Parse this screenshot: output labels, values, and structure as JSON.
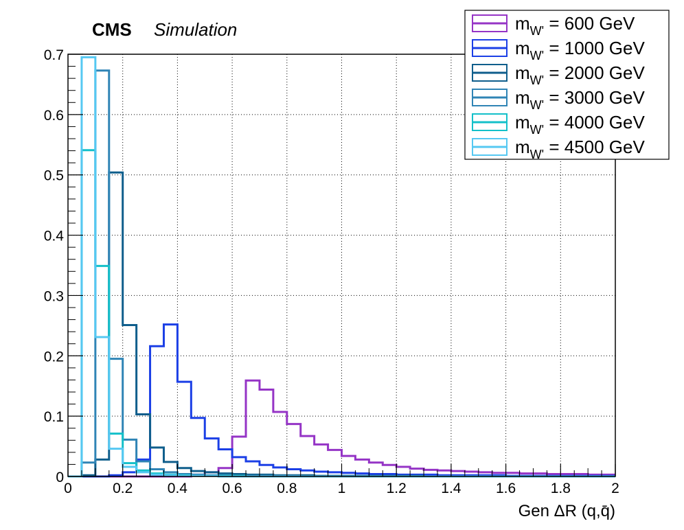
{
  "chart_data": {
    "type": "histogram",
    "experiment_label": "CMS",
    "status_label": "Simulation",
    "xlabel": "Gen ΔR (q,q̄)",
    "ylabel": "",
    "xlim": [
      0,
      2
    ],
    "ylim": [
      0,
      0.7
    ],
    "grid": true,
    "legend_position": "top-right",
    "bin_width": 0.05,
    "x_ticks": [
      "0",
      "0.2",
      "0.4",
      "0.6",
      "0.8",
      "1",
      "1.2",
      "1.4",
      "1.6",
      "1.8",
      "2"
    ],
    "y_ticks": [
      "0",
      "0.1",
      "0.2",
      "0.3",
      "0.4",
      "0.5",
      "0.6",
      "0.7"
    ],
    "series": [
      {
        "name": "mW' = 600 GeV",
        "legend_prefix": "m",
        "legend_sub": "W'",
        "legend_value": " = 600 GeV",
        "color": "#9534c6",
        "values": [
          0,
          0,
          0,
          0,
          0,
          0,
          0,
          0,
          0,
          0.003,
          0.007,
          0.014,
          0.066,
          0.159,
          0.144,
          0.107,
          0.087,
          0.067,
          0.053,
          0.044,
          0.034,
          0.028,
          0.023,
          0.019,
          0.016,
          0.013,
          0.011,
          0.01,
          0.009,
          0.008,
          0.007,
          0.006,
          0.006,
          0.005,
          0.005,
          0.004,
          0.004,
          0.004,
          0.003,
          0.003
        ]
      },
      {
        "name": "mW' = 1000 GeV",
        "legend_prefix": "m",
        "legend_sub": "W'",
        "legend_value": " = 1000 GeV",
        "color": "#1b3fe6",
        "values": [
          0,
          0,
          0,
          0.002,
          0.007,
          0.028,
          0.216,
          0.252,
          0.157,
          0.097,
          0.063,
          0.045,
          0.032,
          0.025,
          0.019,
          0.015,
          0.012,
          0.01,
          0.008,
          0.007,
          0.006,
          0.005,
          0.004,
          0.004,
          0.003,
          0.003,
          0.003,
          0.002,
          0.002,
          0.002,
          0.002,
          0.002,
          0.001,
          0.001,
          0.001,
          0.001,
          0.001,
          0.001,
          0.001,
          0.001
        ]
      },
      {
        "name": "mW' = 2000 GeV",
        "legend_prefix": "m",
        "legend_sub": "W'",
        "legend_value": " = 2000 GeV",
        "color": "#0f5e8c",
        "values": [
          0,
          0.002,
          0.028,
          0.504,
          0.251,
          0.103,
          0.048,
          0.024,
          0.014,
          0.009,
          0.007,
          0.005,
          0.004,
          0.003,
          0.003,
          0.002,
          0.002,
          0.002,
          0.001,
          0.001,
          0.001,
          0.001,
          0.001,
          0.001,
          0.001,
          0.001,
          0,
          0,
          0,
          0,
          0,
          0,
          0,
          0,
          0,
          0,
          0,
          0,
          0,
          0
        ]
      },
      {
        "name": "mW' = 3000 GeV",
        "legend_prefix": "m",
        "legend_sub": "W'",
        "legend_value": " = 3000 GeV",
        "color": "#2f84b5",
        "values": [
          0,
          0.023,
          0.673,
          0.195,
          0.061,
          0.025,
          0.012,
          0.007,
          0.004,
          0.003,
          0.002,
          0.002,
          0.001,
          0.001,
          0.001,
          0.001,
          0.001,
          0,
          0,
          0,
          0,
          0,
          0,
          0,
          0,
          0,
          0,
          0,
          0,
          0,
          0,
          0,
          0,
          0,
          0,
          0,
          0,
          0,
          0,
          0
        ]
      },
      {
        "name": "mW' = 4000 GeV",
        "legend_prefix": "m",
        "legend_sub": "W'",
        "legend_value": " = 4000 GeV",
        "color": "#13c0c9",
        "values": [
          0,
          0.541,
          0.349,
          0.071,
          0.022,
          0.01,
          0.005,
          0.003,
          0.002,
          0.001,
          0.001,
          0.001,
          0.001,
          0,
          0,
          0,
          0,
          0,
          0,
          0,
          0,
          0,
          0,
          0,
          0,
          0,
          0,
          0,
          0,
          0,
          0,
          0,
          0,
          0,
          0,
          0,
          0,
          0,
          0,
          0
        ]
      },
      {
        "name": "mW' = 4500 GeV",
        "legend_prefix": "m",
        "legend_sub": "W'",
        "legend_value": " = 4500 GeV",
        "color": "#55c8f2",
        "values": [
          0,
          0.695,
          0.231,
          0.046,
          0.016,
          0.007,
          0.003,
          0.002,
          0.001,
          0.001,
          0.001,
          0,
          0,
          0,
          0,
          0,
          0,
          0,
          0,
          0,
          0,
          0,
          0,
          0,
          0,
          0,
          0,
          0,
          0,
          0,
          0,
          0,
          0,
          0,
          0,
          0,
          0,
          0,
          0,
          0
        ]
      }
    ]
  }
}
